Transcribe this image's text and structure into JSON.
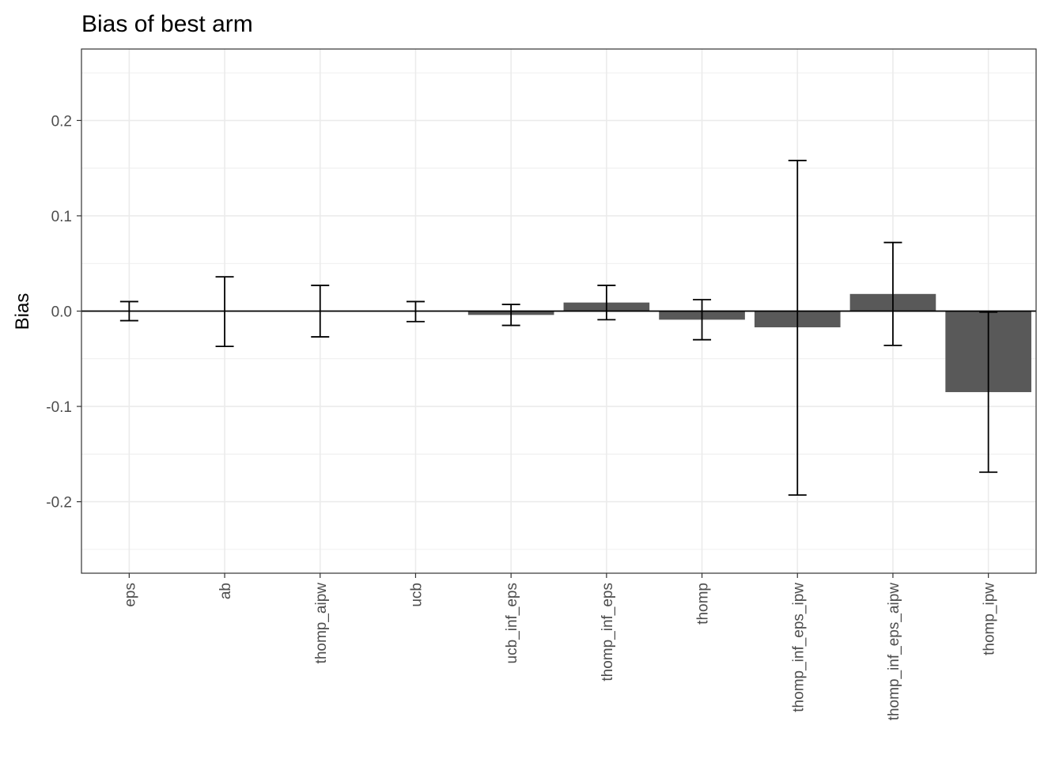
{
  "chart_data": {
    "type": "bar",
    "title": "Bias of best arm",
    "xlabel": "",
    "ylabel": "Bias",
    "categories": [
      "eps",
      "ab",
      "thomp_aipw",
      "ucb",
      "ucb_inf_eps",
      "thomp_inf_eps",
      "thomp",
      "thomp_inf_eps_ipw",
      "thomp_inf_eps_aipw",
      "thomp_ipw"
    ],
    "values": [
      0.0,
      0.0,
      0.0,
      0.0,
      -0.004,
      0.009,
      -0.009,
      -0.017,
      0.018,
      -0.085
    ],
    "error_lower": [
      -0.01,
      -0.037,
      -0.027,
      -0.011,
      -0.015,
      -0.009,
      -0.03,
      -0.193,
      -0.036,
      -0.169
    ],
    "error_upper": [
      0.01,
      0.036,
      0.027,
      0.01,
      0.007,
      0.027,
      0.012,
      0.158,
      0.072,
      -0.001
    ],
    "yticks": [
      -0.2,
      -0.1,
      0.0,
      0.1,
      0.2
    ],
    "ytick_labels": [
      "-0.2",
      "-0.1",
      "0.0",
      "0.1",
      "0.2"
    ],
    "ylim": [
      -0.275,
      0.275
    ],
    "grid": true,
    "hline": 0,
    "colors": {
      "bar": "#595959",
      "errorbar": "#000000",
      "grid": "#ebebeb",
      "border": "#333333"
    }
  }
}
